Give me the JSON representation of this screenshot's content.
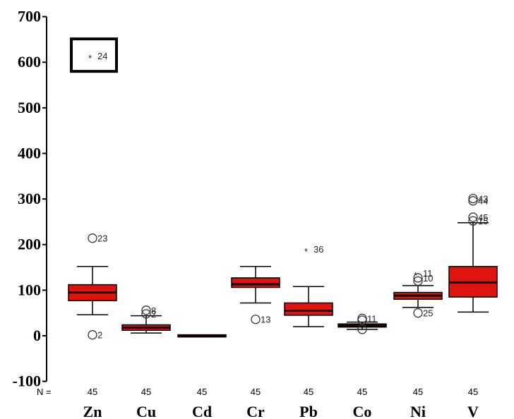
{
  "chart_data": {
    "type": "boxplot",
    "ylim": [
      -100,
      700
    ],
    "yticks": [
      -100,
      0,
      100,
      200,
      300,
      400,
      500,
      600,
      700
    ],
    "n_prefix": "N =",
    "categories": [
      "Zn",
      "Cu",
      "Cd",
      "Cr",
      "Pb",
      "Co",
      "Ni",
      "V"
    ],
    "n": [
      45,
      45,
      45,
      45,
      45,
      45,
      45,
      45
    ],
    "box_color": "#e0140f",
    "boxes": [
      {
        "name": "Zn",
        "min": 46,
        "q1": 77,
        "median": 95,
        "q3": 112,
        "max": 152,
        "outliers": [
          {
            "value": 214,
            "label": "23",
            "marker": "circle"
          },
          {
            "value": 2,
            "label": "2",
            "marker": "circle"
          },
          {
            "value": 614,
            "label": "24",
            "marker": "star",
            "highlight": true
          }
        ]
      },
      {
        "name": "Cu",
        "min": 6,
        "q1": 12,
        "median": 18,
        "q3": 24,
        "max": 44,
        "outliers": [
          {
            "value": 56,
            "label": "8",
            "marker": "circle"
          },
          {
            "value": 48,
            "label": "2",
            "marker": "circle"
          }
        ]
      },
      {
        "name": "Cd",
        "min": 1,
        "q1": 1,
        "median": 1,
        "q3": 2,
        "max": 2,
        "outliers": []
      },
      {
        "name": "Cr",
        "min": 72,
        "q1": 106,
        "median": 113,
        "q3": 127,
        "max": 152,
        "outliers": [
          {
            "value": 36,
            "label": "13",
            "marker": "circle"
          }
        ]
      },
      {
        "name": "Pb",
        "min": 20,
        "q1": 45,
        "median": 55,
        "q3": 72,
        "max": 108,
        "outliers": [
          {
            "value": 190,
            "label": "36",
            "marker": "star"
          }
        ]
      },
      {
        "name": "Co",
        "min": 14,
        "q1": 19,
        "median": 22,
        "q3": 26,
        "max": 30,
        "outliers": [
          {
            "value": 38,
            "label": "11",
            "marker": "circle"
          },
          {
            "value": 34,
            "label": "",
            "marker": "circle"
          },
          {
            "value": 14,
            "label": "",
            "marker": "circle"
          }
        ]
      },
      {
        "name": "Ni",
        "min": 62,
        "q1": 80,
        "median": 88,
        "q3": 95,
        "max": 110,
        "outliers": [
          {
            "value": 138,
            "label": "11",
            "marker": "star"
          },
          {
            "value": 127,
            "label": "10",
            "marker": "circle"
          },
          {
            "value": 120,
            "label": "",
            "marker": "circle"
          },
          {
            "value": 50,
            "label": "25",
            "marker": "circle"
          }
        ]
      },
      {
        "name": "V",
        "min": 52,
        "q1": 85,
        "median": 117,
        "q3": 152,
        "max": 248,
        "outliers": [
          {
            "value": 301,
            "label": "43",
            "marker": "circle"
          },
          {
            "value": 296,
            "label": "44",
            "marker": "circle"
          },
          {
            "value": 260,
            "label": "45",
            "marker": "circle"
          },
          {
            "value": 252,
            "label": "15",
            "marker": "circle"
          }
        ]
      }
    ]
  }
}
